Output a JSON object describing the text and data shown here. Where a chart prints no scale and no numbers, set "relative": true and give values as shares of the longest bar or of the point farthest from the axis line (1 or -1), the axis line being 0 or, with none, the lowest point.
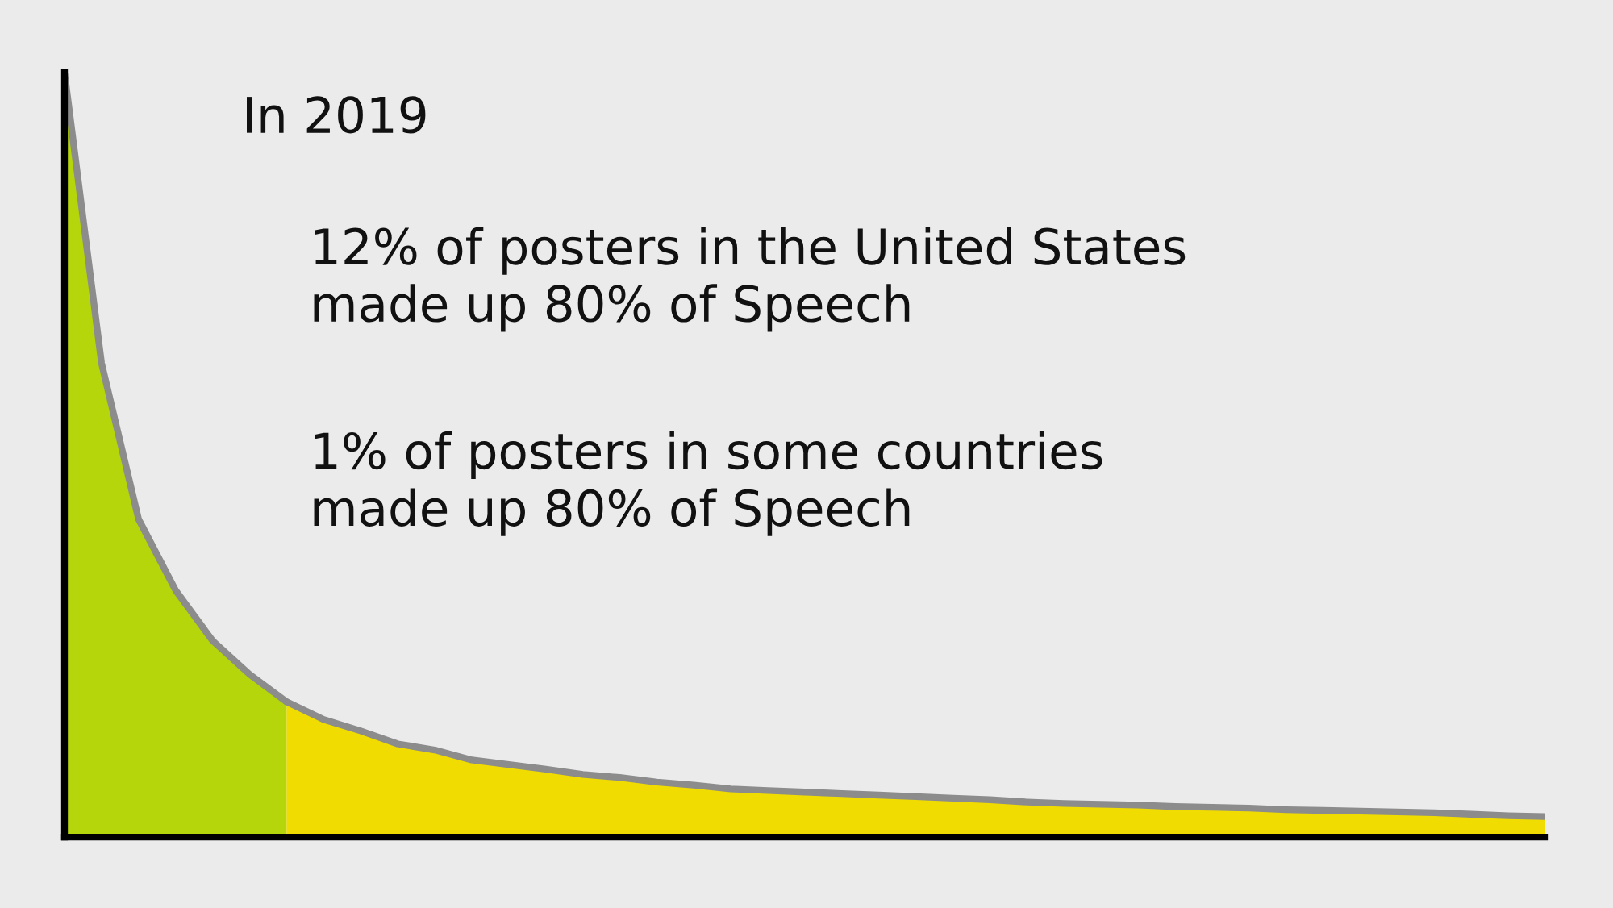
{
  "chart_data": {
    "type": "area",
    "relative": true,
    "tick_labels": false,
    "legend": false,
    "categories": [
      null,
      null,
      null,
      null,
      null,
      null,
      null,
      null,
      null,
      null,
      null,
      null,
      null,
      null,
      null,
      null,
      null,
      null,
      null,
      null,
      null,
      null,
      null,
      null,
      null,
      null,
      null,
      null,
      null,
      null,
      null,
      null,
      null,
      null,
      null,
      null,
      null,
      null,
      null,
      null,
      null
    ],
    "annotations": [
      "In 2019",
      "12% of posters in the United States\nmade up 80% of Speech",
      "1% of posters in some countries\nmade up 80% of Speech"
    ],
    "series": [
      {
        "color": "#b5d60a",
        "values": [
          1.0,
          0.62,
          0.416,
          0.323,
          0.257,
          0.213,
          0.177,
          null,
          null,
          null,
          null,
          null,
          null,
          null,
          null,
          null,
          null,
          null,
          null,
          null,
          null,
          null,
          null,
          null,
          null,
          null,
          null,
          null,
          null,
          null,
          null,
          null,
          null,
          null,
          null,
          null,
          null,
          null,
          null,
          null,
          null
        ]
      },
      {
        "color": "#f0dc00",
        "values": [
          null,
          null,
          null,
          null,
          null,
          null,
          0.177,
          0.154,
          0.139,
          0.122,
          0.114,
          0.101,
          0.095,
          0.089,
          0.082,
          0.078,
          0.072,
          0.068,
          0.063,
          0.061,
          0.059,
          0.057,
          0.055,
          0.053,
          0.051,
          0.049,
          0.046,
          0.044,
          0.043,
          0.042,
          0.04,
          0.039,
          0.038,
          0.036,
          0.035,
          0.034,
          0.033,
          0.032,
          0.03,
          0.028,
          0.027
        ]
      }
    ]
  }
}
